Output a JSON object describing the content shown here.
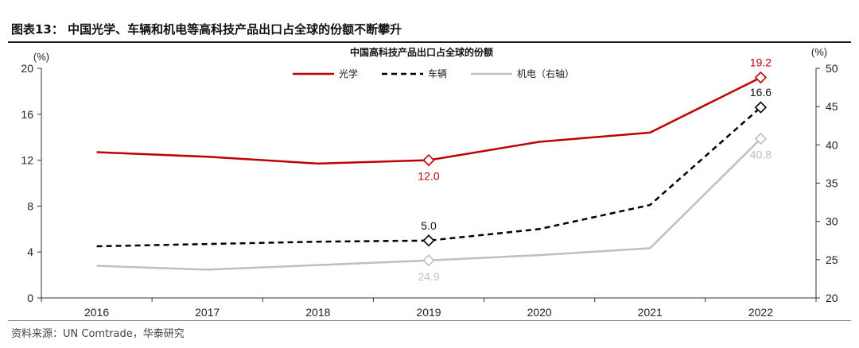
{
  "figure_title": "图表13： 中国光学、车辆和机电等高科技产品出口占全球的份额不断攀升",
  "source": "资料来源：UN Comtrade，华泰研究",
  "chart_data": {
    "type": "line",
    "title": "中国高科技产品出口占全球的份额",
    "categories": [
      "2016",
      "2017",
      "2018",
      "2019",
      "2020",
      "2021",
      "2022"
    ],
    "left_axis": {
      "unit": "(%)",
      "ylim": [
        0,
        20
      ],
      "ticks": [
        "0",
        "4",
        "8",
        "12",
        "16",
        "20"
      ]
    },
    "right_axis": {
      "unit": "(%)",
      "ylim": [
        20,
        50
      ],
      "ticks": [
        "20",
        "25",
        "30",
        "35",
        "40",
        "45",
        "50"
      ]
    },
    "series": [
      {
        "name": "光学",
        "axis": "left",
        "color": "#C00000",
        "dash": "solid",
        "values": [
          12.7,
          12.3,
          11.7,
          12.0,
          13.6,
          14.4,
          19.2
        ],
        "labels": [
          {
            "index": 3,
            "text": "12.0",
            "pos": "below"
          },
          {
            "index": 6,
            "text": "19.2",
            "pos": "above"
          }
        ]
      },
      {
        "name": "车辆",
        "axis": "left",
        "color": "#000000",
        "dash": "dashed",
        "values": [
          4.5,
          4.7,
          4.9,
          5.0,
          6.0,
          8.1,
          16.6
        ],
        "labels": [
          {
            "index": 3,
            "text": "5.0",
            "pos": "above"
          },
          {
            "index": 6,
            "text": "16.6",
            "pos": "above"
          }
        ]
      },
      {
        "name": "机电（右轴）",
        "axis": "right",
        "color": "#BFBFBF",
        "dash": "solid",
        "values": [
          24.2,
          23.7,
          24.3,
          24.9,
          25.6,
          26.5,
          40.8
        ],
        "labels": [
          {
            "index": 3,
            "text": "24.9",
            "pos": "below"
          },
          {
            "index": 6,
            "text": "40.8",
            "pos": "below"
          }
        ]
      }
    ]
  }
}
